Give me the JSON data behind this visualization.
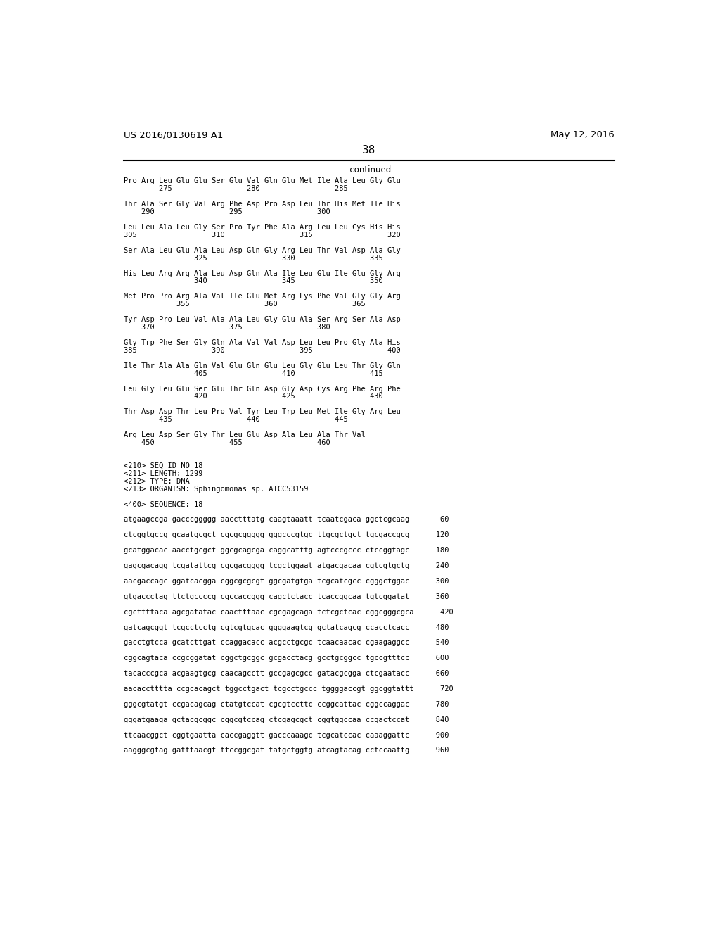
{
  "header_left": "US 2016/0130619 A1",
  "header_right": "May 12, 2016",
  "page_number": "38",
  "continued_label": "-continued",
  "background_color": "#ffffff",
  "text_color": "#000000",
  "header_fontsize": 9.5,
  "body_fontsize": 7.5,
  "page_num_fontsize": 11,
  "continued_fontsize": 8.5,
  "lines": [
    "Pro Arg Leu Glu Glu Ser Glu Val Gln Glu Met Ile Ala Leu Gly Glu",
    "        275                 280                 285",
    "",
    "Thr Ala Ser Gly Val Arg Phe Asp Pro Asp Leu Thr His Met Ile His",
    "    290                 295                 300",
    "",
    "Leu Leu Ala Leu Gly Ser Pro Tyr Phe Ala Arg Leu Leu Cys His His",
    "305                 310                 315                 320",
    "",
    "Ser Ala Leu Glu Ala Leu Asp Gln Gly Arg Leu Thr Val Asp Ala Gly",
    "                325                 330                 335",
    "",
    "His Leu Arg Arg Ala Leu Asp Gln Ala Ile Leu Glu Ile Glu Gly Arg",
    "                340                 345                 350",
    "",
    "Met Pro Pro Arg Ala Val Ile Glu Met Arg Lys Phe Val Gly Gly Arg",
    "            355                 360                 365",
    "",
    "Tyr Asp Pro Leu Val Ala Ala Leu Gly Glu Ala Ser Arg Ser Ala Asp",
    "    370                 375                 380",
    "",
    "Gly Trp Phe Ser Gly Gln Ala Val Val Asp Leu Leu Pro Gly Ala His",
    "385                 390                 395                 400",
    "",
    "Ile Thr Ala Ala Gln Val Glu Gln Glu Leu Gly Glu Leu Thr Gly Gln",
    "                405                 410                 415",
    "",
    "Leu Gly Leu Glu Ser Glu Thr Gln Asp Gly Asp Cys Arg Phe Arg Phe",
    "                420                 425                 430",
    "",
    "Thr Asp Asp Thr Leu Pro Val Tyr Leu Trp Leu Met Ile Gly Arg Leu",
    "        435                 440                 445",
    "",
    "Arg Leu Asp Ser Gly Thr Leu Glu Asp Ala Leu Ala Thr Val",
    "    450                 455                 460",
    "",
    "",
    "<210> SEQ ID NO 18",
    "<211> LENGTH: 1299",
    "<212> TYPE: DNA",
    "<213> ORGANISM: Sphingomonas sp. ATCC53159",
    "",
    "<400> SEQUENCE: 18",
    "",
    "atgaagccga gacccggggg aacctttatg caagtaaatt tcaatcgaca ggctcgcaag       60",
    "",
    "ctcggtgccg gcaatgcgct cgcgcggggg gggcccgtgc ttgcgctgct tgcgaccgcg      120",
    "",
    "gcatggacac aacctgcgct ggcgcagcga caggcatttg agtcccgccc ctccggtagc      180",
    "",
    "gagcgacagg tcgatattcg cgcgacgggg tcgctggaat atgacgacaa cgtcgtgctg      240",
    "",
    "aacgaccagc ggatcacgga cggcgcgcgt ggcgatgtga tcgcatcgcc cgggctggac      300",
    "",
    "gtgaccctag ttctgccccg cgccaccggg cagctctacc tcaccggcaa tgtcggatat      360",
    "",
    "cgcttttaca agcgatatac caactttaac cgcgagcaga tctcgctcac cggcgggcgca      420",
    "",
    "gatcagcggt tcgcctcctg cgtcgtgcac ggggaagtcg gctatcagcg ccacctcacc      480",
    "",
    "gacctgtcca gcatcttgat ccaggacacc acgcctgcgc tcaacaacac cgaagaggcc      540",
    "",
    "cggcagtaca ccgcggatat cggctgcggc gcgacctacg gcctgcggcc tgccgtttcc      600",
    "",
    "tacacccgca acgaagtgcg caacagcctt gccgagcgcc gatacgcgga ctcgaatacc      660",
    "",
    "aacacctttta ccgcacagct tggcctgact tcgcctgccc tggggaccgt ggcggtattt      720",
    "",
    "gggcgtatgt ccgacagcag ctatgtccat cgcgtccttc ccggcattac cggccaggac      780",
    "",
    "gggatgaaga gctacgcggc cggcgtccag ctcgagcgct cggtggccaa ccgactccat      840",
    "",
    "ttcaacggct cggtgaatta caccgaggtt gacccaaagc tcgcatccac caaaggattc      900",
    "",
    "aagggcgtag gatttaacgt ttccggcgat tatgctggtg atcagtacag cctccaattg      960"
  ]
}
